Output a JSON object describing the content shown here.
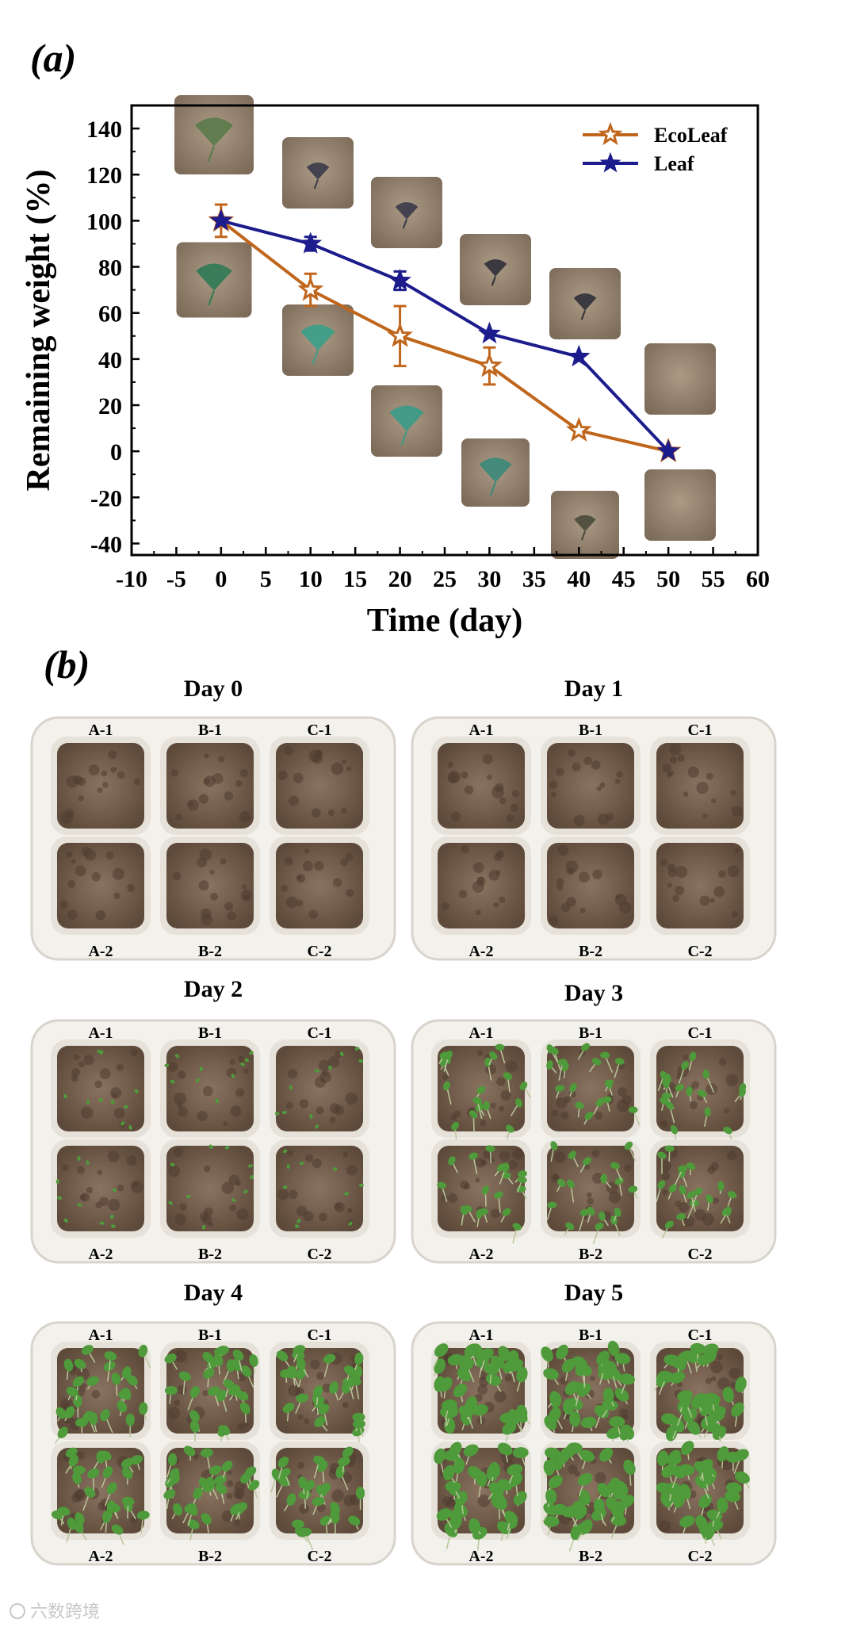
{
  "panel_a": {
    "label": "(a)"
  },
  "panel_b": {
    "label": "(b)",
    "days": [
      {
        "title": "Day 0",
        "stage": 0
      },
      {
        "title": "Day 1",
        "stage": 0
      },
      {
        "title": "Day 2",
        "stage": 1
      },
      {
        "title": "Day 3",
        "stage": 2
      },
      {
        "title": "Day 4",
        "stage": 3
      },
      {
        "title": "Day 5",
        "stage": 4
      }
    ],
    "cell_labels_top": [
      "A-1",
      "B-1",
      "C-1"
    ],
    "cell_labels_bottom": [
      "A-2",
      "B-2",
      "C-2"
    ]
  },
  "watermark": "六数跨境",
  "colors": {
    "ecoleaf": "#c0661c",
    "leaf": "#1c1c8c",
    "soil": "#7a6450",
    "tray": "#f3f1ec",
    "plant": "#4f9a3a",
    "clay": "#a08e78"
  },
  "chart_data": {
    "type": "line",
    "xlabel": "Time (day)",
    "ylabel": "Remaining weight (%)",
    "xlim": [
      -10,
      60
    ],
    "ylim": [
      -45,
      150
    ],
    "xticks": [
      -10,
      -5,
      0,
      5,
      10,
      15,
      20,
      25,
      30,
      35,
      40,
      45,
      50,
      55,
      60
    ],
    "yticks": [
      -40,
      -20,
      0,
      20,
      40,
      60,
      80,
      100,
      120,
      140
    ],
    "legend_position": "top-right",
    "grid": false,
    "series": [
      {
        "name": "EcoLeaf",
        "marker": "open-star",
        "color": "#c0661c",
        "x": [
          0,
          10,
          20,
          30,
          40,
          50
        ],
        "values": [
          100,
          70,
          50,
          37,
          9,
          0
        ],
        "errors": [
          7,
          7,
          13,
          8,
          0,
          0
        ]
      },
      {
        "name": "Leaf",
        "marker": "filled-star",
        "color": "#1c1c8c",
        "x": [
          0,
          10,
          20,
          30,
          40,
          50
        ],
        "values": [
          100,
          90,
          74,
          51,
          41,
          0
        ],
        "errors": [
          0,
          3,
          4,
          0,
          0,
          0
        ]
      }
    ]
  }
}
